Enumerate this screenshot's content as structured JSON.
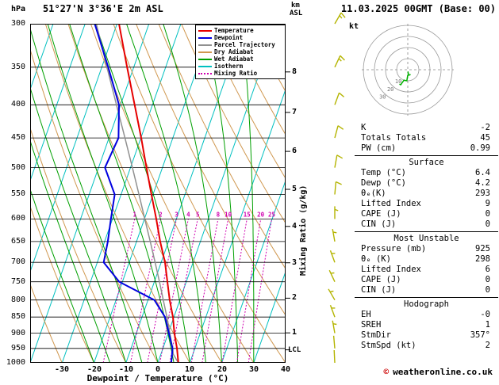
{
  "header": {
    "station": "51°27'N 3°36'E 2m ASL",
    "datetime": "11.03.2025 00GMT (Base: 00)",
    "pressure_unit": "hPa",
    "altitude_unit_line1": "km",
    "altitude_unit_line2": "ASL"
  },
  "legend": [
    {
      "label": "Temperature",
      "color": "#e60000",
      "style": "solid"
    },
    {
      "label": "Dewpoint",
      "color": "#0000e0",
      "style": "solid"
    },
    {
      "label": "Parcel Trajectory",
      "color": "#909090",
      "style": "solid"
    },
    {
      "label": "Dry Adiabat",
      "color": "#d09850",
      "style": "solid"
    },
    {
      "label": "Wet Adiabat",
      "color": "#00a000",
      "style": "solid"
    },
    {
      "label": "Isotherm",
      "color": "#00c0c0",
      "style": "solid"
    },
    {
      "label": "Mixing Ratio",
      "color": "#d000b0",
      "style": "dotted"
    }
  ],
  "axes": {
    "pressure_ticks": [
      300,
      350,
      400,
      450,
      500,
      550,
      600,
      650,
      700,
      750,
      800,
      850,
      900,
      950,
      1000
    ],
    "temp_ticks": [
      -30,
      -20,
      -10,
      0,
      10,
      20,
      30,
      40
    ],
    "km_ticks": [
      1,
      2,
      3,
      4,
      5,
      6,
      7,
      8
    ],
    "xlabel": "Dewpoint / Temperature (°C)",
    "mixing_ratio_axis_label": "Mixing Ratio (g/kg)",
    "mixing_ratio_values": [
      1,
      2,
      3,
      4,
      5,
      8,
      10,
      15,
      20,
      25
    ]
  },
  "chart_data": {
    "type": "line",
    "subtype": "skew-t-log-p-sounding",
    "pressure_range_hpa": [
      300,
      1000
    ],
    "temp_axis_range_c": [
      -40,
      40
    ],
    "lcl": {
      "label": "LCL",
      "pressure_hpa": 955
    },
    "colors": {
      "temperature": "#e60000",
      "dewpoint": "#0000e0",
      "parcel": "#909090",
      "dry_adiabat": "#d09850",
      "wet_adiabat": "#00a000",
      "isotherm": "#00c0c0",
      "mixing_ratio": "#d000b0",
      "pressure_line": "#000000",
      "wind_barb": "#b4b400"
    },
    "series": [
      {
        "name": "Temperature",
        "color": "#e60000",
        "width": 2,
        "points": [
          [
            1000,
            6.4
          ],
          [
            950,
            4.4
          ],
          [
            900,
            1.9
          ],
          [
            850,
            -0.3
          ],
          [
            800,
            -3.2
          ],
          [
            750,
            -5.9
          ],
          [
            700,
            -8.8
          ],
          [
            650,
            -12.6
          ],
          [
            600,
            -16.3
          ],
          [
            550,
            -20.5
          ],
          [
            500,
            -25.0
          ],
          [
            450,
            -29.9
          ],
          [
            400,
            -35.6
          ],
          [
            350,
            -42.1
          ],
          [
            300,
            -49.4
          ]
        ]
      },
      {
        "name": "Dewpoint",
        "color": "#0000e0",
        "width": 2,
        "points": [
          [
            1000,
            4.2
          ],
          [
            950,
            3.0
          ],
          [
            900,
            0.2
          ],
          [
            850,
            -2.8
          ],
          [
            800,
            -8.0
          ],
          [
            750,
            -21.0
          ],
          [
            700,
            -28.0
          ],
          [
            650,
            -29.0
          ],
          [
            600,
            -30.5
          ],
          [
            550,
            -32.0
          ],
          [
            500,
            -38.0
          ],
          [
            450,
            -37.0
          ],
          [
            400,
            -40.5
          ],
          [
            350,
            -48.0
          ],
          [
            300,
            -57.0
          ]
        ]
      },
      {
        "name": "Parcel Trajectory",
        "color": "#909090",
        "width": 1.5,
        "points": [
          [
            1000,
            6.4
          ],
          [
            970,
            3.9
          ],
          [
            950,
            3.0
          ],
          [
            900,
            0.5
          ],
          [
            850,
            -2.2
          ],
          [
            800,
            -5.2
          ],
          [
            750,
            -8.4
          ],
          [
            700,
            -11.9
          ],
          [
            650,
            -15.7
          ],
          [
            600,
            -19.9
          ],
          [
            550,
            -24.4
          ],
          [
            500,
            -29.4
          ],
          [
            450,
            -35.0
          ],
          [
            400,
            -41.3
          ],
          [
            350,
            -48.4
          ],
          [
            300,
            -56.5
          ]
        ]
      }
    ],
    "wind_barbs": [
      {
        "p": 1000,
        "dir": 357,
        "kt": 2
      },
      {
        "p": 950,
        "dir": 355,
        "kt": 2
      },
      {
        "p": 900,
        "dir": 350,
        "kt": 5
      },
      {
        "p": 850,
        "dir": 340,
        "kt": 5
      },
      {
        "p": 800,
        "dir": 330,
        "kt": 5
      },
      {
        "p": 750,
        "dir": 335,
        "kt": 5
      },
      {
        "p": 700,
        "dir": 340,
        "kt": 5
      },
      {
        "p": 650,
        "dir": 350,
        "kt": 5
      },
      {
        "p": 600,
        "dir": 0,
        "kt": 5
      },
      {
        "p": 550,
        "dir": 5,
        "kt": 10
      },
      {
        "p": 500,
        "dir": 10,
        "kt": 10
      },
      {
        "p": 450,
        "dir": 15,
        "kt": 10
      },
      {
        "p": 400,
        "dir": 20,
        "kt": 10
      },
      {
        "p": 350,
        "dir": 25,
        "kt": 15
      },
      {
        "p": 300,
        "dir": 30,
        "kt": 15
      }
    ]
  },
  "hodograph": {
    "unit_label": "kt",
    "ring_step_kt": 10,
    "ring_labels": [
      10,
      20,
      30
    ],
    "trace_color": "#00b000"
  },
  "panel": {
    "sections": [
      {
        "heading": null,
        "rows": [
          [
            "K",
            "-2"
          ],
          [
            "Totals Totals",
            "45"
          ],
          [
            "PW (cm)",
            "0.99"
          ]
        ]
      },
      {
        "heading": "Surface",
        "rows": [
          [
            "Temp (°C)",
            "6.4"
          ],
          [
            "Dewp (°C)",
            "4.2"
          ],
          [
            "θₑ(K)",
            "293"
          ],
          [
            "Lifted Index",
            "9"
          ],
          [
            "CAPE (J)",
            "0"
          ],
          [
            "CIN (J)",
            "0"
          ]
        ]
      },
      {
        "heading": "Most Unstable",
        "rows": [
          [
            "Pressure (mb)",
            "925"
          ],
          [
            "θₑ (K)",
            "298"
          ],
          [
            "Lifted Index",
            "6"
          ],
          [
            "CAPE (J)",
            "0"
          ],
          [
            "CIN (J)",
            "0"
          ]
        ]
      },
      {
        "heading": "Hodograph",
        "rows": [
          [
            "EH",
            "-0"
          ],
          [
            "SREH",
            "1"
          ],
          [
            "StmDir",
            "357°"
          ],
          [
            "StmSpd (kt)",
            "2"
          ]
        ]
      }
    ]
  },
  "footer": {
    "copyright_symbol": "©",
    "site": "weatheronline.co.uk"
  }
}
